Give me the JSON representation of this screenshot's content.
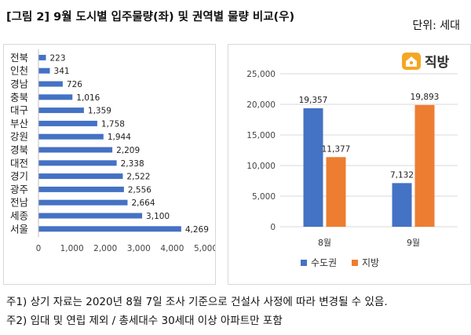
{
  "title": "[그림 2] 9월 도시별 입주물량(좌) 및 권역별 물량 비교(우)",
  "unit_label": "단위: 세대",
  "brand": "직방",
  "colors": {
    "blue": "#4472c4",
    "orange": "#ed7d31",
    "logo_orange": "#f5a623"
  },
  "notes": [
    "주1) 상기 자료는 2020년 8월 7일 조사 기준으로 건설사 사정에 따라 변경될 수 있음.",
    "주2) 임대 및 연립 제외 / 총세대수 30세대 이상 아파트만 포함"
  ],
  "chart_data": [
    {
      "type": "bar",
      "orientation": "horizontal",
      "categories": [
        "전북",
        "인천",
        "경남",
        "충북",
        "대구",
        "부산",
        "강원",
        "경북",
        "대전",
        "경기",
        "광주",
        "전남",
        "세종",
        "서울"
      ],
      "values": [
        223,
        341,
        726,
        1016,
        1359,
        1758,
        1944,
        2209,
        2338,
        2522,
        2556,
        2664,
        3100,
        4269
      ],
      "value_labels": [
        "223",
        "341",
        "726",
        "1,016",
        "1,359",
        "1,758",
        "1,944",
        "2,209",
        "2,338",
        "2,522",
        "2,556",
        "2,664",
        "3,100",
        "4,269"
      ],
      "xlim": [
        0,
        5000
      ],
      "xticks": [
        "0",
        "1,000",
        "2,000",
        "3,000",
        "4,000",
        "5,000"
      ],
      "color": "#4472c4",
      "grid": false
    },
    {
      "type": "bar",
      "categories": [
        "8월",
        "9월"
      ],
      "series": [
        {
          "name": "수도권",
          "values": [
            19357,
            7132
          ],
          "labels": [
            "19,357",
            "7,132"
          ],
          "color": "#4472c4"
        },
        {
          "name": "지방",
          "values": [
            11377,
            19893
          ],
          "labels": [
            "11,377",
            "19,893"
          ],
          "color": "#ed7d31"
        }
      ],
      "ylim": [
        0,
        25000
      ],
      "yticks": [
        "0",
        "5,000",
        "10,000",
        "15,000",
        "20,000",
        "25,000"
      ],
      "grid": true,
      "legend": "bottom"
    }
  ]
}
